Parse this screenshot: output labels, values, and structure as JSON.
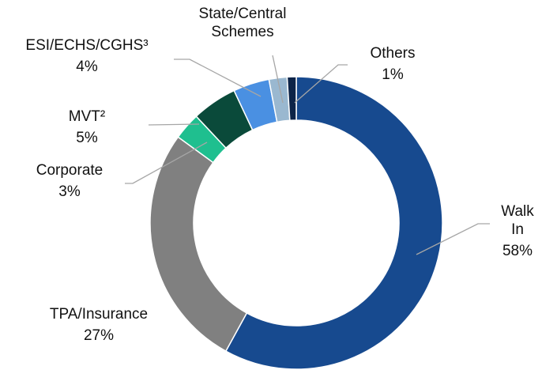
{
  "chart_data": {
    "type": "donut",
    "categories": [
      "Walk In",
      "TPA/Insurance",
      "Corporate",
      "MVT²",
      "ESI/ECHS/CGHS³",
      "State/Central Schemes",
      "Others"
    ],
    "values": [
      58,
      27,
      3,
      5,
      4,
      2,
      1
    ],
    "value_labels": [
      "58%",
      "27%",
      "3%",
      "5%",
      "4%",
      null,
      "1%"
    ],
    "colors": [
      "#174a8f",
      "#808080",
      "#1fbf8f",
      "#0a4a3a",
      "#4a90e2",
      "#9ab8d0",
      "#0d2448"
    ]
  }
}
